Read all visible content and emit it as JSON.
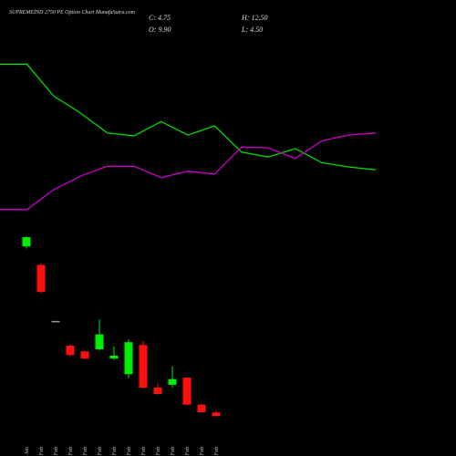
{
  "chart_data": [
    {
      "type": "candlestick",
      "title": "SUPREMEIND 2750 PE Option  Chart MunafaSutra.com",
      "ohlc_labels": [
        "C: 4.75",
        "H: 12.50",
        "O: 9.90",
        "L: 4.50"
      ],
      "categories": [
        "29 Jan",
        "01 Feb",
        "03 Feb",
        "04 Feb",
        "05 Feb",
        "06 Feb",
        "07 Feb",
        "10 Feb",
        "11 Feb",
        "12 Feb",
        "13 Feb",
        "14 Feb",
        "17 Feb",
        "18 Feb"
      ],
      "open": [
        244,
        218,
        139,
        104,
        96,
        99,
        86,
        64,
        105,
        45,
        49,
        59,
        21,
        9.9
      ],
      "high": [
        258,
        220,
        139,
        106,
        97,
        141,
        103,
        113,
        111,
        51,
        75,
        60,
        22,
        12.5
      ],
      "low": [
        241,
        178,
        139,
        89,
        85,
        97,
        84,
        58,
        44,
        35,
        45,
        20,
        10,
        4.5
      ],
      "close": [
        257,
        180,
        139,
        91,
        86,
        120,
        90,
        109,
        45,
        36,
        57,
        21,
        10.3,
        4.75
      ],
      "up_color": "#00ee00",
      "down_color": "#ff1010",
      "flat_color": "#999999",
      "ylim": [
        0,
        540
      ]
    },
    {
      "type": "line",
      "series": [
        {
          "color": "#00dd00",
          "values": [
            501,
            501,
            456,
            432,
            404,
            400,
            420,
            401,
            414,
            377,
            370,
            382,
            362,
            356,
            352
          ]
        },
        {
          "color": "#cc00cc",
          "values": [
            296,
            296,
            324,
            343,
            357,
            357,
            341,
            350,
            346,
            384,
            383,
            368,
            393,
            401,
            404
          ]
        }
      ],
      "ylim": [
        0,
        540
      ]
    }
  ]
}
